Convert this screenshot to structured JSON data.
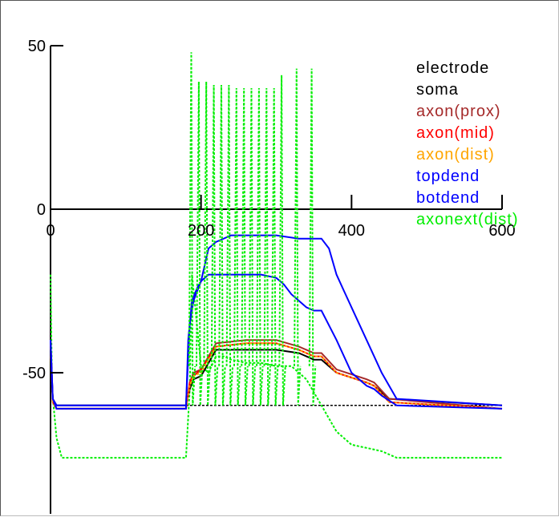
{
  "chart_data": {
    "type": "line",
    "title": "",
    "xlabel": "",
    "ylabel": "",
    "xlim": [
      0,
      600
    ],
    "ylim": [
      -90,
      50
    ],
    "x_ticks": [
      "0",
      "200",
      "400",
      "600"
    ],
    "y_ticks": [
      "50",
      "0",
      "-50"
    ],
    "baseline_y": -60,
    "legend_position": "top-right",
    "legend": [
      {
        "label": "electrode",
        "color": "#000000"
      },
      {
        "label": "soma",
        "color": "#000000"
      },
      {
        "label": "axon(prox)",
        "color": "#a52a2a"
      },
      {
        "label": "axon(mid)",
        "color": "#ff0000"
      },
      {
        "label": "axon(dist)",
        "color": "#ffa500"
      },
      {
        "label": "topdend",
        "color": "#0000ff"
      },
      {
        "label": "botdend",
        "color": "#0000ff"
      },
      {
        "label": "axonext(dist)",
        "color": "#00ee00"
      }
    ],
    "series": [
      {
        "name": "soma",
        "color": "#000000",
        "dashed": false,
        "x": [
          0,
          3,
          8,
          180,
          185,
          190,
          200,
          220,
          260,
          300,
          330,
          350,
          360,
          380,
          420,
          430,
          450,
          600
        ],
        "y": [
          -42,
          -58,
          -60,
          -60,
          -55,
          -52,
          -51,
          -43,
          -43,
          -43,
          -44,
          -46,
          -46,
          -50,
          -53,
          -54,
          -58,
          -60
        ]
      },
      {
        "name": "axon(prox)",
        "color": "#a52a2a",
        "dashed": false,
        "x": [
          0,
          3,
          8,
          180,
          185,
          190,
          200,
          220,
          260,
          300,
          330,
          350,
          360,
          380,
          420,
          430,
          450,
          600
        ],
        "y": [
          -40,
          -58,
          -61,
          -61,
          -53,
          -50,
          -49,
          -41,
          -40,
          -40,
          -42,
          -44,
          -44,
          -49,
          -52,
          -53,
          -58,
          -61
        ]
      },
      {
        "name": "axon(mid)",
        "color": "#ff0000",
        "dashed": false,
        "x": [
          0,
          3,
          8,
          180,
          185,
          190,
          200,
          220,
          260,
          300,
          330,
          350,
          360,
          380,
          420,
          430,
          450,
          600
        ],
        "y": [
          -40,
          -59,
          -61,
          -61,
          -53,
          -51,
          -49,
          -42,
          -41,
          -41,
          -43,
          -45,
          -45,
          -50,
          -53,
          -54,
          -59,
          -61
        ]
      },
      {
        "name": "axon(dist)",
        "color": "#ffa500",
        "dashed": true,
        "x": [
          0,
          3,
          8,
          180,
          185,
          190,
          200,
          220,
          260,
          300,
          330,
          350,
          360,
          380,
          420,
          430,
          450,
          600
        ],
        "y": [
          -40,
          -59,
          -61,
          -61,
          -54,
          -51,
          -50,
          -42,
          -41,
          -41,
          -43,
          -45,
          -45,
          -50,
          -53,
          -54,
          -59,
          -61
        ]
      },
      {
        "name": "topdend",
        "color": "#0000ff",
        "dashed": false,
        "x": [
          0,
          3,
          8,
          180,
          185,
          190,
          200,
          210,
          220,
          240,
          260,
          300,
          330,
          360,
          370,
          380,
          390,
          400,
          410,
          420,
          430,
          440,
          460,
          600
        ],
        "y": [
          -40,
          -58,
          -60,
          -60,
          -35,
          -28,
          -22,
          -12,
          -10,
          -8,
          -8,
          -8,
          -9,
          -9,
          -12,
          -20,
          -25,
          -30,
          -35,
          -40,
          -45,
          -50,
          -58,
          -60
        ]
      },
      {
        "name": "botdend",
        "color": "#0000ff",
        "dashed": false,
        "x": [
          0,
          3,
          8,
          180,
          183,
          188,
          195,
          200,
          210,
          220,
          240,
          260,
          280,
          300,
          310,
          320,
          330,
          340,
          350,
          360,
          380,
          400,
          420,
          430,
          440,
          460,
          600
        ],
        "y": [
          -40,
          -58,
          -61,
          -61,
          -40,
          -28,
          -24,
          -22,
          -20,
          -20,
          -20,
          -20,
          -20,
          -21,
          -23,
          -26,
          -28,
          -30,
          -31,
          -31,
          -40,
          -50,
          -54,
          -55,
          -57,
          -60,
          -61
        ]
      },
      {
        "name": "axonext(dist)",
        "color": "#00ee00",
        "dashed": true,
        "x": [
          0,
          2,
          8,
          15,
          180,
          185,
          188,
          200,
          210,
          220,
          230,
          240,
          260,
          280,
          300,
          320,
          340,
          360,
          380,
          400,
          420,
          440,
          460,
          600
        ],
        "y": [
          -20,
          -55,
          -70,
          -76,
          -76,
          -55,
          -20,
          -48,
          -50,
          -45,
          -45,
          -46,
          -47,
          -47,
          -48,
          -48,
          -52,
          -60,
          -68,
          -72,
          -73,
          -74,
          -76,
          -76
        ]
      }
    ],
    "spike_series": "axonext(dist)",
    "spikes": [
      {
        "x": 187,
        "peak": 48
      },
      {
        "x": 197,
        "peak": 39
      },
      {
        "x": 207,
        "peak": 39
      },
      {
        "x": 217,
        "peak": 38
      },
      {
        "x": 227,
        "peak": 38
      },
      {
        "x": 237,
        "peak": 38
      },
      {
        "x": 247,
        "peak": 37
      },
      {
        "x": 257,
        "peak": 37
      },
      {
        "x": 267,
        "peak": 37
      },
      {
        "x": 277,
        "peak": 37
      },
      {
        "x": 287,
        "peak": 37
      },
      {
        "x": 297,
        "peak": 37
      },
      {
        "x": 307,
        "peak": 41
      },
      {
        "x": 327,
        "peak": 43
      },
      {
        "x": 347,
        "peak": 43
      }
    ]
  }
}
